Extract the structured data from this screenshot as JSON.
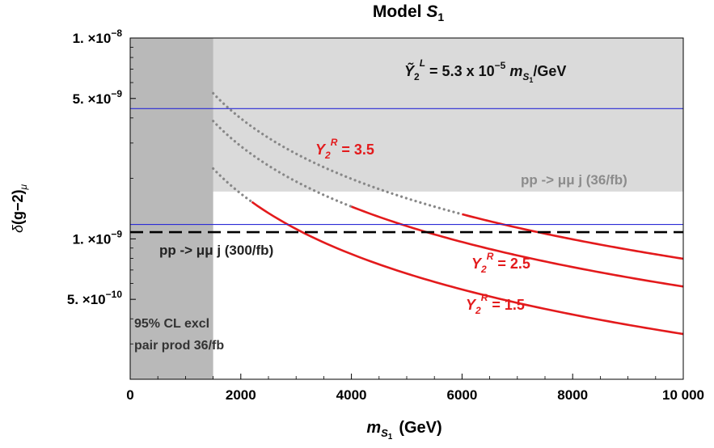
{
  "chart_data": {
    "type": "line",
    "title": {
      "base": "Model ",
      "symbol": "S",
      "sub": "1"
    },
    "xlabel": {
      "symbol": "m",
      "sub1": "S",
      "sub2": "1",
      "unit": "(GeV)"
    },
    "ylabel": {
      "base": "δ(g−2)",
      "sub": "μ"
    },
    "xlim": [
      0,
      10000
    ],
    "ylim": [
      2e-10,
      1e-08
    ],
    "y_scale": "log",
    "x_ticks": [
      0,
      2000,
      4000,
      6000,
      8000,
      10000
    ],
    "x_tick_labels": [
      "0",
      "2000",
      "4000",
      "6000",
      "8000",
      "10 000"
    ],
    "y_ticks": [
      {
        "value": 1e-08,
        "mant": "1. ×10",
        "exp": "−8"
      },
      {
        "value": 5e-09,
        "mant": "5. ×10",
        "exp": "−9"
      },
      {
        "value": 1e-09,
        "mant": "1. ×10",
        "exp": "−9"
      },
      {
        "value": 5e-10,
        "mant": "5. ×10",
        "exp": "−10"
      }
    ],
    "colors": {
      "curve": "#e31a1c",
      "dotted": "#888888",
      "excluded_light": "#dadada",
      "excluded_dark": "#b9b9b9",
      "band_line": "#2b2bd6",
      "dashed": "#000000"
    },
    "regions": {
      "pair_production_xmax": 1500,
      "dilepton_36fb_ymin": 1.72e-09
    },
    "band": {
      "lower": 1.18e-09,
      "upper": 4.45e-09
    },
    "dashed_line": {
      "y": 1.08e-09,
      "label": "pp -> μμ j (300/fb)"
    },
    "region_labels": {
      "dilepton_36fb": "pp -> μμ j (36/fb)",
      "pair_line1": "95% CL excl",
      "pair_line2": "pair prod 36/fb"
    },
    "coupling_note": {
      "prefix": "Ỹ",
      "sub": "2",
      "sup": "L",
      "text": " = 5.3 x 10",
      "exp": "−5",
      "tail_m": " m",
      "tail_sub1": "S",
      "tail_sub2": "1",
      "tail_unit": "/GeV"
    },
    "series": [
      {
        "name": "Y2R = 3.5",
        "sym": "Y",
        "sub": "2",
        "sup": "R",
        "val": " = 3.5",
        "A": 7.96e-06,
        "exclusion_end_x": 6000
      },
      {
        "name": "Y2R = 2.5",
        "sym": "Y",
        "sub": "2",
        "sup": "R",
        "val": " = 2.5",
        "A": 5.79e-06,
        "exclusion_end_x": 4000
      },
      {
        "name": "Y2R = 1.5",
        "sym": "Y",
        "sub": "2",
        "sup": "R",
        "val": " = 1.5",
        "A": 3.36e-06,
        "exclusion_end_x": 2200
      }
    ],
    "curve_form": "y = A / x",
    "curve_x_start": 1500,
    "grid": false,
    "legend": "none"
  }
}
